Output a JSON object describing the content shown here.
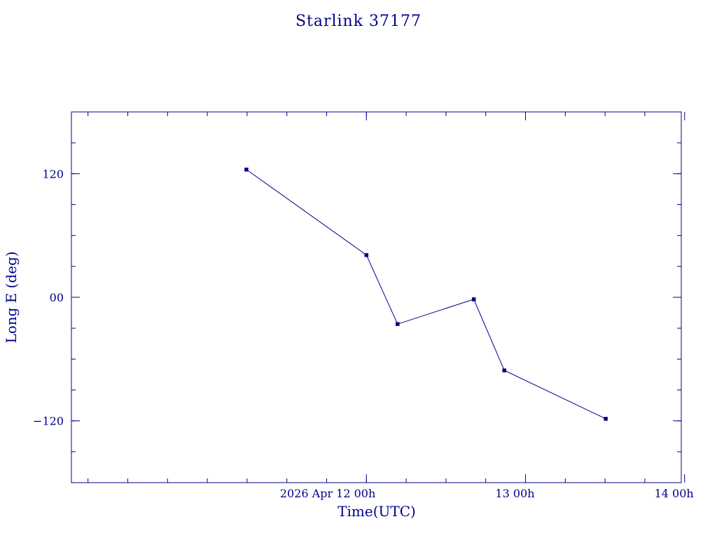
{
  "chart_data": {
    "type": "line",
    "title": "Starlink 37177",
    "xlabel": "Time(UTC)",
    "ylabel": "Long E (deg)",
    "colors": {
      "axis": "#00008b",
      "series": "#00008b"
    },
    "x_unit": "hours from 2026 Apr 12 00h",
    "xlim": [
      -44.5,
      47.5
    ],
    "ylim": [
      -180,
      180
    ],
    "x_ticks": [
      {
        "value": 0,
        "label": "2026 Apr 12  00h"
      },
      {
        "value": 24,
        "label": "13  00h"
      },
      {
        "value": 48,
        "label": "14  00h"
      }
    ],
    "y_ticks": [
      {
        "value": 120,
        "label": "120"
      },
      {
        "value": 0,
        "label": "00"
      },
      {
        "value": -120,
        "label": "−120"
      }
    ],
    "series": [
      {
        "points": [
          {
            "x": -18.1,
            "y": 124
          },
          {
            "x": 0.0,
            "y": 41
          },
          {
            "x": 4.7,
            "y": -26
          },
          {
            "x": 16.2,
            "y": -2
          },
          {
            "x": 20.8,
            "y": -71
          },
          {
            "x": 36.1,
            "y": -118
          }
        ]
      }
    ]
  }
}
